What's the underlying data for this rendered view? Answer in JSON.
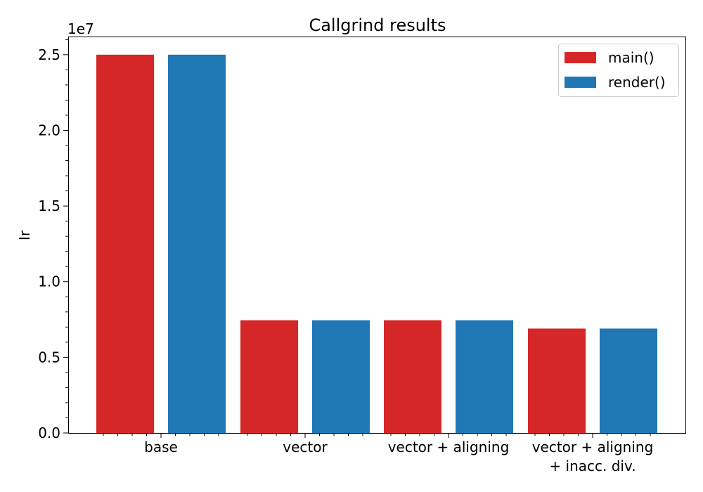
{
  "chart_data": {
    "type": "bar",
    "title": "Callgrind results",
    "xlabel": "",
    "ylabel": "Ir",
    "y_offset_label": "1e7",
    "ylim": [
      0,
      26200000
    ],
    "yticks": [
      {
        "value": 0,
        "label": "0.0"
      },
      {
        "value": 5000000,
        "label": "0.5"
      },
      {
        "value": 10000000,
        "label": "1.0"
      },
      {
        "value": 15000000,
        "label": "1.5"
      },
      {
        "value": 20000000,
        "label": "2.0"
      },
      {
        "value": 25000000,
        "label": "2.5"
      }
    ],
    "categories": [
      {
        "lines": [
          "base"
        ]
      },
      {
        "lines": [
          "vector"
        ]
      },
      {
        "lines": [
          "vector + aligning"
        ]
      },
      {
        "lines": [
          "vector + aligning",
          "+ inacc. div."
        ]
      }
    ],
    "series": [
      {
        "name": "main()",
        "color": "#d62728",
        "values": [
          25000000,
          7450000,
          7450000,
          6900000
        ]
      },
      {
        "name": "render()",
        "color": "#1f77b4",
        "values": [
          25000000,
          7450000,
          7450000,
          6900000
        ]
      }
    ],
    "legend_position": "top-right",
    "grid": false
  }
}
